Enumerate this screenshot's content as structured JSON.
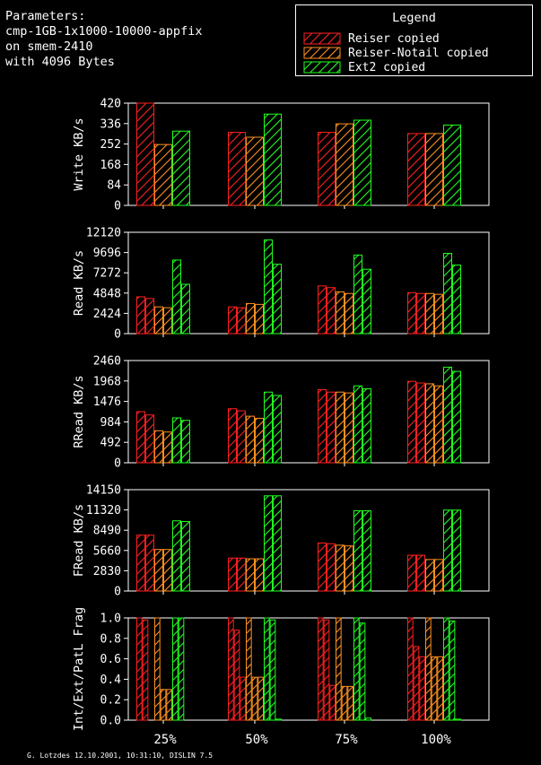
{
  "header": {
    "lines": [
      "Parameters:",
      "cmp-1GB-1x1000-10000-appfix",
      "on smem-2410",
      "with 4096 Bytes"
    ]
  },
  "legend": {
    "title": "Legend",
    "entries": [
      {
        "label": "Reiser copied",
        "color": "#ff2020"
      },
      {
        "label": "Reiser-Notail copied",
        "color": "#ff9020"
      },
      {
        "label": "Ext2 copied",
        "color": "#20ff20"
      }
    ]
  },
  "footer": "G. Lotzdes 12.10.2001, 10:31:10, DISLIN 7.5",
  "chart_data": {
    "type": "bar",
    "categories": [
      "25%",
      "50%",
      "75%",
      "100%"
    ],
    "series_colors": [
      "#ff2020",
      "#ff9020",
      "#20ff20"
    ],
    "panels": [
      {
        "ylabel": "Write KB/s",
        "ylim": [
          0,
          420
        ],
        "yticks": [
          "0",
          "84",
          "168",
          "252",
          "336",
          "420"
        ],
        "bars_per_series": 1,
        "values": [
          [
            [
              420
            ],
            [
              250
            ],
            [
              305
            ]
          ],
          [
            [
              300
            ],
            [
              280
            ],
            [
              375
            ]
          ],
          [
            [
              300
            ],
            [
              335
            ],
            [
              350
            ]
          ],
          [
            [
              295
            ],
            [
              295
            ],
            [
              330
            ]
          ]
        ]
      },
      {
        "ylabel": "Read KB/s",
        "ylim": [
          0,
          12120
        ],
        "yticks": [
          "0",
          "2424",
          "4848",
          "7272",
          "9696",
          "12120"
        ],
        "bars_per_series": 2,
        "values": [
          [
            [
              4400,
              4200
            ],
            [
              3200,
              3100
            ],
            [
              8800,
              5900
            ]
          ],
          [
            [
              3200,
              3100
            ],
            [
              3600,
              3500
            ],
            [
              11200,
              8300
            ]
          ],
          [
            [
              5700,
              5500
            ],
            [
              5000,
              4800
            ],
            [
              9400,
              7700
            ]
          ],
          [
            [
              4900,
              4800
            ],
            [
              4800,
              4700
            ],
            [
              9600,
              8200
            ]
          ]
        ]
      },
      {
        "ylabel": "RRead KB/s",
        "ylim": [
          0,
          2460
        ],
        "yticks": [
          "0",
          "492",
          "984",
          "1476",
          "1968",
          "2460"
        ],
        "bars_per_series": 2,
        "values": [
          [
            [
              1230,
              1150
            ],
            [
              770,
              740
            ],
            [
              1080,
              1020
            ]
          ],
          [
            [
              1300,
              1250
            ],
            [
              1120,
              1070
            ],
            [
              1700,
              1620
            ]
          ],
          [
            [
              1760,
              1700
            ],
            [
              1700,
              1680
            ],
            [
              1850,
              1780
            ]
          ],
          [
            [
              1960,
              1920
            ],
            [
              1900,
              1850
            ],
            [
              2300,
              2200
            ]
          ]
        ]
      },
      {
        "ylabel": "FRead KB/s",
        "ylim": [
          0,
          14150
        ],
        "yticks": [
          "0",
          "2830",
          "5660",
          "8490",
          "11320",
          "14150"
        ],
        "bars_per_series": 2,
        "values": [
          [
            [
              7800,
              7800
            ],
            [
              5800,
              5800
            ],
            [
              9800,
              9700
            ]
          ],
          [
            [
              4600,
              4600
            ],
            [
              4500,
              4500
            ],
            [
              13300,
              13300
            ]
          ],
          [
            [
              6700,
              6600
            ],
            [
              6400,
              6300
            ],
            [
              11200,
              11200
            ]
          ],
          [
            [
              5000,
              5000
            ],
            [
              4400,
              4400
            ],
            [
              11300,
              11300
            ]
          ]
        ]
      },
      {
        "ylabel": "Int/Ext/PatL Frag",
        "ylim": [
          0,
          1.0
        ],
        "yticks": [
          "0.0",
          "0.2",
          "0.4",
          "0.6",
          "0.8",
          "1.0"
        ],
        "bars_per_series": 3,
        "values": [
          [
            [
              1.0,
              0.98,
              0.0
            ],
            [
              1.0,
              0.3,
              0.3
            ],
            [
              1.0,
              1.0,
              0.0
            ]
          ],
          [
            [
              1.0,
              0.88,
              0.42
            ],
            [
              1.0,
              0.42,
              0.42
            ],
            [
              1.0,
              0.98,
              0.01
            ]
          ],
          [
            [
              1.0,
              0.98,
              0.34
            ],
            [
              1.0,
              0.33,
              0.33
            ],
            [
              1.0,
              0.95,
              0.02
            ]
          ],
          [
            [
              1.0,
              0.72,
              0.62
            ],
            [
              1.0,
              0.62,
              0.62
            ],
            [
              1.0,
              0.97,
              0.01
            ]
          ]
        ]
      }
    ]
  }
}
